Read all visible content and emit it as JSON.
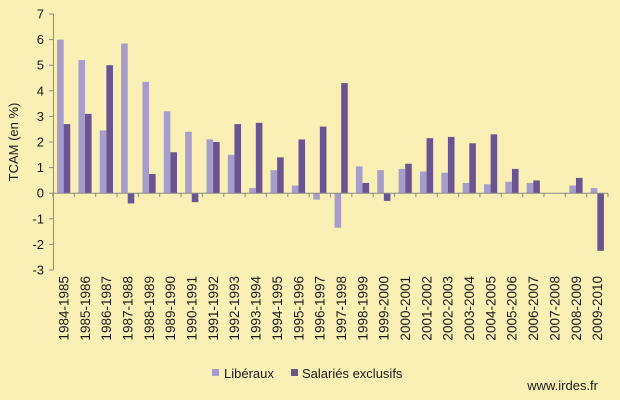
{
  "background": "#FAF0B5",
  "footer": "www.irdes.fr",
  "chart_data": {
    "type": "bar",
    "ylabel": "TCAM (en %)",
    "ylim": [
      -3,
      7
    ],
    "yticks": [
      -3,
      -2,
      -1,
      0,
      1,
      2,
      3,
      4,
      5,
      6,
      7
    ],
    "grid": false,
    "legend": "bottom",
    "categories": [
      "1984-1985",
      "1985-1986",
      "1986-1987",
      "1987-1988",
      "1988-1989",
      "1989-1990",
      "1990-1991",
      "1991-1992",
      "1992-1993",
      "1993-1994",
      "1994-1995",
      "1995-1996",
      "1996-1997",
      "1997-1998",
      "1998-1999",
      "1999-2000",
      "2000-2001",
      "2001-2002",
      "2002-2003",
      "2003-2004",
      "2004-2005",
      "2005-2006",
      "2006-2007",
      "2007-2008",
      "2008-2009",
      "2009-2010"
    ],
    "series": [
      {
        "name": "Libéraux",
        "color": "#A69DCA",
        "values": [
          6.0,
          5.2,
          2.45,
          5.85,
          4.35,
          3.2,
          2.4,
          2.1,
          1.5,
          0.2,
          0.9,
          0.3,
          -0.25,
          -1.35,
          1.05,
          0.9,
          0.95,
          0.85,
          0.8,
          0.4,
          0.35,
          0.45,
          0.4,
          0,
          0.3,
          0.2
        ]
      },
      {
        "name": "Salariés exclusifs",
        "color": "#6A5592",
        "values": [
          2.7,
          3.1,
          5.0,
          -0.4,
          0.75,
          1.6,
          -0.35,
          2.0,
          2.7,
          2.75,
          1.4,
          2.1,
          2.6,
          4.3,
          0.4,
          -0.3,
          1.15,
          2.15,
          2.2,
          1.95,
          2.3,
          0.95,
          0.5,
          0,
          0.6,
          -2.25
        ]
      }
    ]
  }
}
